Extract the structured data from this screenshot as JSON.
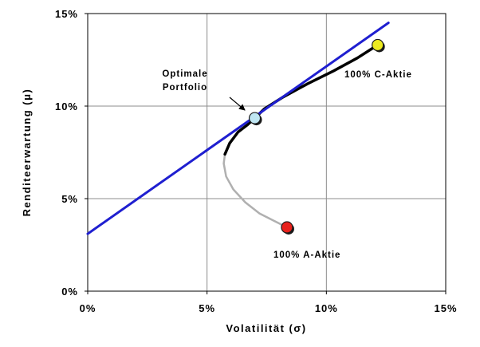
{
  "chart_data": {
    "type": "line",
    "xlabel": "Volatilität (σ)",
    "ylabel": "Renditeerwartung (μ)",
    "xlim": [
      0,
      15
    ],
    "ylim": [
      0,
      15
    ],
    "x_ticks": [
      0,
      5,
      10,
      15
    ],
    "y_ticks": [
      0,
      5,
      10,
      15
    ],
    "x_tick_labels": [
      "0%",
      "5%",
      "10%",
      "15%"
    ],
    "y_tick_labels": [
      "0%",
      "5%",
      "10%",
      "15%"
    ],
    "grid": true,
    "legend": "none",
    "series": [
      {
        "role": "capital-market-line",
        "color": "#1f1fd0",
        "x": [
          0,
          12.6
        ],
        "y": [
          3.1,
          14.5
        ]
      },
      {
        "role": "efficient-frontier",
        "color": "#000000",
        "x": [
          5.75,
          5.95,
          6.3,
          6.7,
          7.0,
          7.4,
          8.2,
          9.2,
          10.3,
          11.3,
          12.15
        ],
        "y": [
          7.4,
          8.0,
          8.6,
          9.0,
          9.35,
          9.85,
          10.5,
          11.2,
          11.9,
          12.6,
          13.3
        ]
      },
      {
        "role": "inefficient-frontier",
        "color": "#b0b0b0",
        "x": [
          5.75,
          5.7,
          5.8,
          6.1,
          6.6,
          7.2,
          7.8,
          8.35
        ],
        "y": [
          7.4,
          6.9,
          6.2,
          5.5,
          4.8,
          4.2,
          3.8,
          3.45
        ]
      }
    ],
    "points": [
      {
        "label": "100% A-Aktie",
        "x": 8.35,
        "y": 3.45,
        "color": "#e8211c"
      },
      {
        "label": "Optimale Portfolio",
        "x": 7.0,
        "y": 9.35,
        "color": "#bfe6f2"
      },
      {
        "label": "100% C-Aktie",
        "x": 12.15,
        "y": 13.3,
        "color": "#ecea1f"
      }
    ],
    "annotations": {
      "optimal_line1": "Optimale",
      "optimal_line2": "Portfolio",
      "c_label": "100% C-Aktie",
      "a_label": "100% A-Aktie"
    }
  }
}
